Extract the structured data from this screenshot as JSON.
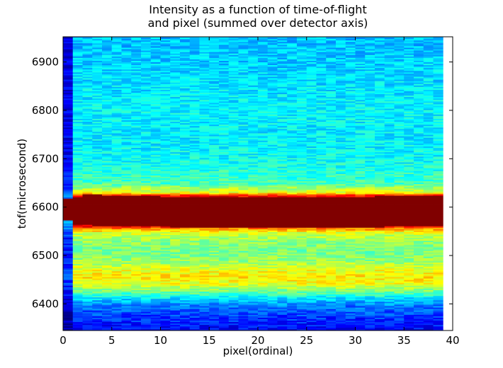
{
  "chart_data": {
    "type": "heatmap",
    "title_lines": [
      "Intensity as a function of time-of-flight",
      "and pixel (summed over detector axis)"
    ],
    "xlabel": "pixel(ordinal)",
    "ylabel": "tof(microsecond)",
    "xlim": [
      0,
      40
    ],
    "ylim": [
      6345,
      6952
    ],
    "x_ticks": [
      0,
      5,
      10,
      15,
      20,
      25,
      30,
      35,
      40
    ],
    "y_ticks": [
      6400,
      6500,
      6600,
      6700,
      6800,
      6900
    ],
    "data_x_range": [
      0,
      39
    ],
    "colormap": "jet",
    "color_scale": "relative intensity 0 to 1",
    "grid": false,
    "legend": "none",
    "colors": {
      "background": "#ffffff",
      "axes_frame": "#000000",
      "plot_fill": "#ffffff"
    },
    "pixel_columns": [
      {
        "pixel": 0,
        "band_low": 6574,
        "band_high": 6618
      },
      {
        "pixel": 1,
        "band_low": 6565,
        "band_high": 6621
      },
      {
        "pixel": 2,
        "band_low": 6563,
        "band_high": 6626
      },
      {
        "pixel": 3,
        "band_low": 6562,
        "band_high": 6626
      },
      {
        "pixel": 4,
        "band_low": 6562,
        "band_high": 6625
      },
      {
        "pixel": 5,
        "band_low": 6561,
        "band_high": 6625
      },
      {
        "pixel": 6,
        "band_low": 6561,
        "band_high": 6624
      },
      {
        "pixel": 7,
        "band_low": 6561,
        "band_high": 6624
      },
      {
        "pixel": 8,
        "band_low": 6560,
        "band_high": 6623
      },
      {
        "pixel": 9,
        "band_low": 6560,
        "band_high": 6623
      },
      {
        "pixel": 10,
        "band_low": 6560,
        "band_high": 6622
      },
      {
        "pixel": 11,
        "band_low": 6559,
        "band_high": 6622
      },
      {
        "pixel": 12,
        "band_low": 6559,
        "band_high": 6622
      },
      {
        "pixel": 13,
        "band_low": 6558,
        "band_high": 6621
      },
      {
        "pixel": 14,
        "band_low": 6558,
        "band_high": 6621
      },
      {
        "pixel": 15,
        "band_low": 6558,
        "band_high": 6621
      },
      {
        "pixel": 16,
        "band_low": 6558,
        "band_high": 6621
      },
      {
        "pixel": 17,
        "band_low": 6558,
        "band_high": 6620
      },
      {
        "pixel": 18,
        "band_low": 6558,
        "band_high": 6620
      },
      {
        "pixel": 19,
        "band_low": 6558,
        "band_high": 6620
      },
      {
        "pixel": 20,
        "band_low": 6558,
        "band_high": 6620
      },
      {
        "pixel": 21,
        "band_low": 6558,
        "band_high": 6620
      },
      {
        "pixel": 22,
        "band_low": 6558,
        "band_high": 6621
      },
      {
        "pixel": 23,
        "band_low": 6558,
        "band_high": 6621
      },
      {
        "pixel": 24,
        "band_low": 6558,
        "band_high": 6621
      },
      {
        "pixel": 25,
        "band_low": 6558,
        "band_high": 6621
      },
      {
        "pixel": 26,
        "band_low": 6558,
        "band_high": 6621
      },
      {
        "pixel": 27,
        "band_low": 6558,
        "band_high": 6621
      },
      {
        "pixel": 28,
        "band_low": 6558,
        "band_high": 6622
      },
      {
        "pixel": 29,
        "band_low": 6558,
        "band_high": 6622
      },
      {
        "pixel": 30,
        "band_low": 6559,
        "band_high": 6622
      },
      {
        "pixel": 31,
        "band_low": 6559,
        "band_high": 6622
      },
      {
        "pixel": 32,
        "band_low": 6559,
        "band_high": 6623
      },
      {
        "pixel": 33,
        "band_low": 6560,
        "band_high": 6623
      },
      {
        "pixel": 34,
        "band_low": 6560,
        "band_high": 6624
      },
      {
        "pixel": 35,
        "band_low": 6560,
        "band_high": 6624
      },
      {
        "pixel": 36,
        "band_low": 6561,
        "band_high": 6624
      },
      {
        "pixel": 37,
        "band_low": 6561,
        "band_high": 6625
      },
      {
        "pixel": 38,
        "band_low": 6561,
        "band_high": 6625
      }
    ],
    "intensity_profile_tof": [
      {
        "tof": 6345,
        "level": 0.12
      },
      {
        "tof": 6370,
        "level": 0.17
      },
      {
        "tof": 6395,
        "level": 0.24
      },
      {
        "tof": 6410,
        "level": 0.33
      },
      {
        "tof": 6425,
        "level": 0.48
      },
      {
        "tof": 6440,
        "level": 0.6
      },
      {
        "tof": 6455,
        "level": 0.65
      },
      {
        "tof": 6470,
        "level": 0.61
      },
      {
        "tof": 6490,
        "level": 0.52
      },
      {
        "tof": 6510,
        "level": 0.49
      },
      {
        "tof": 6530,
        "level": 0.52
      },
      {
        "tof": 6548,
        "level": 0.6
      },
      {
        "tof": 6556,
        "level": 0.74
      },
      {
        "tof": 6560,
        "level": 0.88
      },
      {
        "tof": 6590,
        "level": 1.0
      },
      {
        "tof": 6624,
        "level": 0.88
      },
      {
        "tof": 6630,
        "level": 0.62
      },
      {
        "tof": 6650,
        "level": 0.44
      },
      {
        "tof": 6700,
        "level": 0.38
      },
      {
        "tof": 6750,
        "level": 0.36
      },
      {
        "tof": 6800,
        "level": 0.37
      },
      {
        "tof": 6850,
        "level": 0.35
      },
      {
        "tof": 6900,
        "level": 0.33
      },
      {
        "tof": 6952,
        "level": 0.31
      }
    ],
    "edge_column_level_factor": 0.3
  }
}
